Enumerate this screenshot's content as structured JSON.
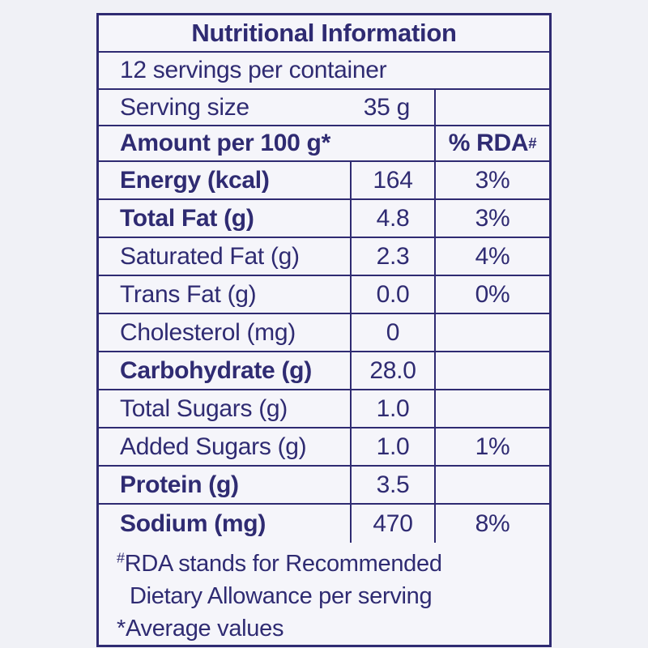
{
  "label": {
    "title": "Nutritional Information",
    "servings_line": "12 servings per container",
    "serving_size": {
      "name": "Serving size",
      "value": "35 g"
    },
    "header": {
      "amount_label": "Amount per 100 g*",
      "rda_label": "% RDA",
      "rda_sup": "#"
    },
    "rows": [
      {
        "name": "Energy (kcal)",
        "bold": true,
        "amount": "164",
        "rda": "3%"
      },
      {
        "name": "Total Fat (g)",
        "bold": true,
        "amount": "4.8",
        "rda": "3%"
      },
      {
        "name": "Saturated Fat (g)",
        "bold": false,
        "amount": "2.3",
        "rda": "4%"
      },
      {
        "name": "Trans Fat (g)",
        "bold": false,
        "amount": "0.0",
        "rda": "0%"
      },
      {
        "name": "Cholesterol (mg)",
        "bold": false,
        "amount": "0",
        "rda": ""
      },
      {
        "name": "Carbohydrate (g)",
        "bold": true,
        "amount": "28.0",
        "rda": ""
      },
      {
        "name": "Total Sugars (g)",
        "bold": false,
        "amount": "1.0",
        "rda": ""
      },
      {
        "name": "Added Sugars (g)",
        "bold": false,
        "amount": "1.0",
        "rda": "1%"
      },
      {
        "name": "Protein (g)",
        "bold": true,
        "amount": "3.5",
        "rda": ""
      },
      {
        "name": "Sodium (mg)",
        "bold": true,
        "amount": "470",
        "rda": "8%"
      }
    ],
    "footnote": {
      "line1_sup": "#",
      "line1": "RDA stands for Recommended",
      "line2": "Dietary Allowance per serving",
      "line3": "*Average values"
    }
  },
  "colors": {
    "ink": "#2f2b72",
    "page_background": "#f0f1f6",
    "table_background": "#f5f5fa"
  }
}
